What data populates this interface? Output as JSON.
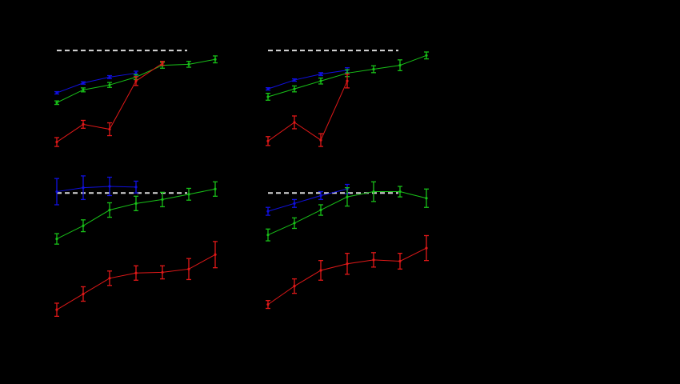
{
  "colors": {
    "background": "#000000",
    "blue": "#1010e0",
    "green": "#18c018",
    "red": "#e01818",
    "reference": "#d8d8d8"
  },
  "chart_data": [
    {
      "type": "line",
      "panel": "top-left",
      "x": [
        1,
        2,
        3,
        4,
        5,
        6,
        7
      ],
      "ylim": [
        0,
        1
      ],
      "reference_line": {
        "y": 0.95,
        "x_range": [
          1,
          6
        ],
        "style": "dashed"
      },
      "series": [
        {
          "color": "blue",
          "values": [
            0.52,
            0.62,
            0.68,
            0.72,
            null,
            null,
            null
          ],
          "errors": [
            0.012,
            0.012,
            0.015,
            0.02,
            null,
            null,
            null
          ]
        },
        {
          "color": "green",
          "values": [
            0.42,
            0.55,
            0.6,
            0.68,
            0.8,
            0.81,
            0.86
          ],
          "errors": [
            0.018,
            0.02,
            0.025,
            0.025,
            0.03,
            0.03,
            0.035
          ]
        },
        {
          "color": "red",
          "values": [
            0.02,
            0.2,
            0.15,
            0.64,
            0.82,
            null,
            null
          ],
          "errors": [
            0.045,
            0.04,
            0.065,
            0.045,
            0.02,
            null,
            null
          ]
        }
      ]
    },
    {
      "type": "line",
      "panel": "top-right",
      "x": [
        1,
        2,
        3,
        4,
        5,
        6,
        7
      ],
      "ylim": [
        0,
        1
      ],
      "reference_line": {
        "y": 0.95,
        "x_range": [
          1,
          6
        ],
        "style": "dashed"
      },
      "series": [
        {
          "color": "blue",
          "values": [
            0.56,
            0.65,
            0.71,
            0.75,
            null,
            null,
            null
          ],
          "errors": [
            0.012,
            0.012,
            0.015,
            0.025,
            null,
            null,
            null
          ]
        },
        {
          "color": "green",
          "values": [
            0.48,
            0.56,
            0.64,
            0.72,
            0.76,
            0.8,
            0.9
          ],
          "errors": [
            0.035,
            0.03,
            0.03,
            0.035,
            0.035,
            0.055,
            0.035
          ]
        },
        {
          "color": "red",
          "values": [
            0.03,
            0.22,
            0.04,
            0.64,
            null,
            null,
            null
          ],
          "errors": [
            0.045,
            0.065,
            0.065,
            0.07,
            null,
            null,
            null
          ]
        }
      ]
    },
    {
      "type": "line",
      "panel": "bottom-left",
      "x": [
        1,
        2,
        3,
        4,
        5,
        6,
        7
      ],
      "ylim": [
        0,
        1
      ],
      "reference_line": {
        "y": 0.95,
        "x_range": [
          1,
          6
        ],
        "style": "dashed"
      },
      "series": [
        {
          "color": "blue",
          "values": [
            0.96,
            0.99,
            1.0,
            0.995,
            null,
            null,
            null
          ],
          "errors": [
            0.1,
            0.09,
            0.07,
            0.045,
            null,
            null,
            null
          ]
        },
        {
          "color": "green",
          "values": [
            0.6,
            0.7,
            0.82,
            0.87,
            0.9,
            0.94,
            0.98
          ],
          "errors": [
            0.04,
            0.045,
            0.055,
            0.055,
            0.055,
            0.045,
            0.055
          ]
        },
        {
          "color": "red",
          "values": [
            0.06,
            0.18,
            0.3,
            0.34,
            0.345,
            0.37,
            0.48
          ],
          "errors": [
            0.05,
            0.055,
            0.055,
            0.055,
            0.05,
            0.08,
            0.1
          ]
        }
      ]
    },
    {
      "type": "line",
      "panel": "bottom-right",
      "x": [
        1,
        2,
        3,
        4,
        5,
        6,
        7
      ],
      "ylim": [
        0,
        1
      ],
      "reference_line": {
        "y": 0.95,
        "x_range": [
          1,
          6
        ],
        "style": "dashed"
      },
      "series": [
        {
          "color": "blue",
          "values": [
            0.81,
            0.87,
            0.93,
            0.98,
            null,
            null,
            null
          ],
          "errors": [
            0.03,
            0.03,
            0.03,
            0.035,
            null,
            null,
            null
          ]
        },
        {
          "color": "green",
          "values": [
            0.63,
            0.72,
            0.82,
            0.92,
            0.96,
            0.96,
            0.91
          ],
          "errors": [
            0.045,
            0.04,
            0.04,
            0.07,
            0.075,
            0.04,
            0.07
          ]
        },
        {
          "color": "red",
          "values": [
            0.1,
            0.24,
            0.36,
            0.41,
            0.44,
            0.43,
            0.53
          ],
          "errors": [
            0.03,
            0.055,
            0.075,
            0.08,
            0.055,
            0.06,
            0.095
          ]
        }
      ]
    }
  ]
}
